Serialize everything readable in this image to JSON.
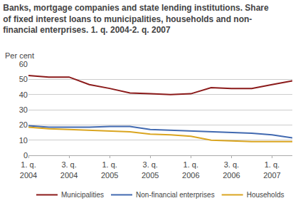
{
  "chart_data": {
    "type": "line",
    "title": "Banks, mortgage companies and state lending institutions. Share\nof fixed interest loans to municipalities, households and non-\nfinancial enterprises. 1. q. 2004-2. q. 2007",
    "ylabel": "Per cent",
    "categories": [
      "1. q.\n2004",
      null,
      "3. q.\n2004",
      null,
      "1. q.\n2005",
      null,
      "3. q.\n2005",
      null,
      "1. q.\n2006",
      null,
      "3. q.\n2006",
      null,
      "1. q.\n2007",
      null
    ],
    "series": [
      {
        "name": "Municipalities",
        "color": "#8B1A1A",
        "values": [
          52.5,
          51.5,
          51.5,
          46.5,
          44.0,
          41.0,
          40.5,
          40.0,
          40.5,
          44.5,
          44.0,
          44.0,
          46.5,
          49.0
        ]
      },
      {
        "name": "Non-financial enterprises",
        "color": "#4169B0",
        "values": [
          19.5,
          18.5,
          18.5,
          18.5,
          19.0,
          19.0,
          17.0,
          16.5,
          16.0,
          15.5,
          15.0,
          14.5,
          13.5,
          11.5
        ]
      },
      {
        "name": "Households",
        "color": "#DAA520",
        "values": [
          18.5,
          17.5,
          17.0,
          16.5,
          16.0,
          15.5,
          14.0,
          13.5,
          12.5,
          10.0,
          9.5,
          9.0,
          9.0,
          9.0
        ]
      }
    ],
    "ylim": [
      0,
      60
    ],
    "yticks": [
      0,
      10,
      20,
      30,
      40,
      50,
      60
    ],
    "grid": true,
    "legend": "bottom"
  }
}
